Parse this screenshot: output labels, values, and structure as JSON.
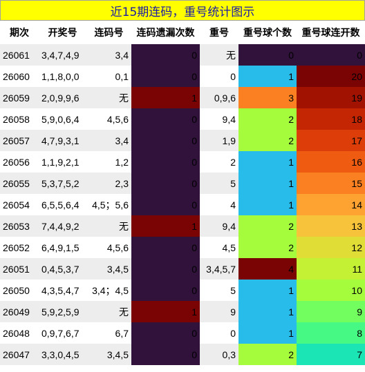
{
  "title": "近15期连码，重号统计图示",
  "headers": [
    "期次",
    "开奖号",
    "连码号",
    "连码遗漏次数",
    "重号",
    "重号球个数",
    "重号球连开数"
  ],
  "colors": {
    "title_bg": "#ffff00",
    "title_text": "#1a1aa6",
    "header_text": "#000000",
    "row_alt_bg": "#ededed"
  },
  "chart_data": {
    "type": "table",
    "title": "近15期连码，重号统计图示",
    "columns": [
      "期次",
      "开奖号",
      "连码号",
      "连码遗漏次数",
      "重号",
      "重号球个数",
      "重号球连开数"
    ],
    "heatmap_columns": [
      "连码遗漏次数",
      "重号球个数",
      "重号球连开数"
    ],
    "rows": [
      {
        "issue": "26061",
        "draw": "3,4,7,4,9",
        "run": "3,4",
        "run_miss": 0,
        "repeat": "无",
        "repeat_count": 0,
        "repeat_streak": 0
      },
      {
        "issue": "26060",
        "draw": "1,1,8,0,0",
        "run": "0,1",
        "run_miss": 0,
        "repeat": "0",
        "repeat_count": 1,
        "repeat_streak": 20
      },
      {
        "issue": "26059",
        "draw": "2,0,9,9,6",
        "run": "无",
        "run_miss": 1,
        "repeat": "0,9,6",
        "repeat_count": 3,
        "repeat_streak": 19
      },
      {
        "issue": "26058",
        "draw": "5,9,0,6,4",
        "run": "4,5,6",
        "run_miss": 0,
        "repeat": "9,4",
        "repeat_count": 2,
        "repeat_streak": 18
      },
      {
        "issue": "26057",
        "draw": "4,7,9,3,1",
        "run": "3,4",
        "run_miss": 0,
        "repeat": "1,9",
        "repeat_count": 2,
        "repeat_streak": 17
      },
      {
        "issue": "26056",
        "draw": "1,1,9,2,1",
        "run": "1,2",
        "run_miss": 0,
        "repeat": "2",
        "repeat_count": 1,
        "repeat_streak": 16
      },
      {
        "issue": "26055",
        "draw": "5,3,7,5,2",
        "run": "2,3",
        "run_miss": 0,
        "repeat": "5",
        "repeat_count": 1,
        "repeat_streak": 15
      },
      {
        "issue": "26054",
        "draw": "6,5,5,6,4",
        "run": "4,5；5,6",
        "run_miss": 0,
        "repeat": "4",
        "repeat_count": 1,
        "repeat_streak": 14
      },
      {
        "issue": "26053",
        "draw": "7,4,4,9,2",
        "run": "无",
        "run_miss": 1,
        "repeat": "9,4",
        "repeat_count": 2,
        "repeat_streak": 13
      },
      {
        "issue": "26052",
        "draw": "6,4,9,1,5",
        "run": "4,5,6",
        "run_miss": 0,
        "repeat": "4,5",
        "repeat_count": 2,
        "repeat_streak": 12
      },
      {
        "issue": "26051",
        "draw": "0,4,5,3,7",
        "run": "3,4,5",
        "run_miss": 0,
        "repeat": "3,4,5,7",
        "repeat_count": 4,
        "repeat_streak": 11
      },
      {
        "issue": "26050",
        "draw": "4,3,5,4,7",
        "run": "3,4；4,5",
        "run_miss": 0,
        "repeat": "5",
        "repeat_count": 1,
        "repeat_streak": 10
      },
      {
        "issue": "26049",
        "draw": "5,9,2,5,9",
        "run": "无",
        "run_miss": 1,
        "repeat": "9",
        "repeat_count": 1,
        "repeat_streak": 9
      },
      {
        "issue": "26048",
        "draw": "0,9,7,6,7",
        "run": "6,7",
        "run_miss": 0,
        "repeat": "0",
        "repeat_count": 1,
        "repeat_streak": 8
      },
      {
        "issue": "26047",
        "draw": "3,3,0,4,5",
        "run": "3,4,5",
        "run_miss": 0,
        "repeat": "0,3",
        "repeat_count": 2,
        "repeat_streak": 7
      }
    ]
  }
}
